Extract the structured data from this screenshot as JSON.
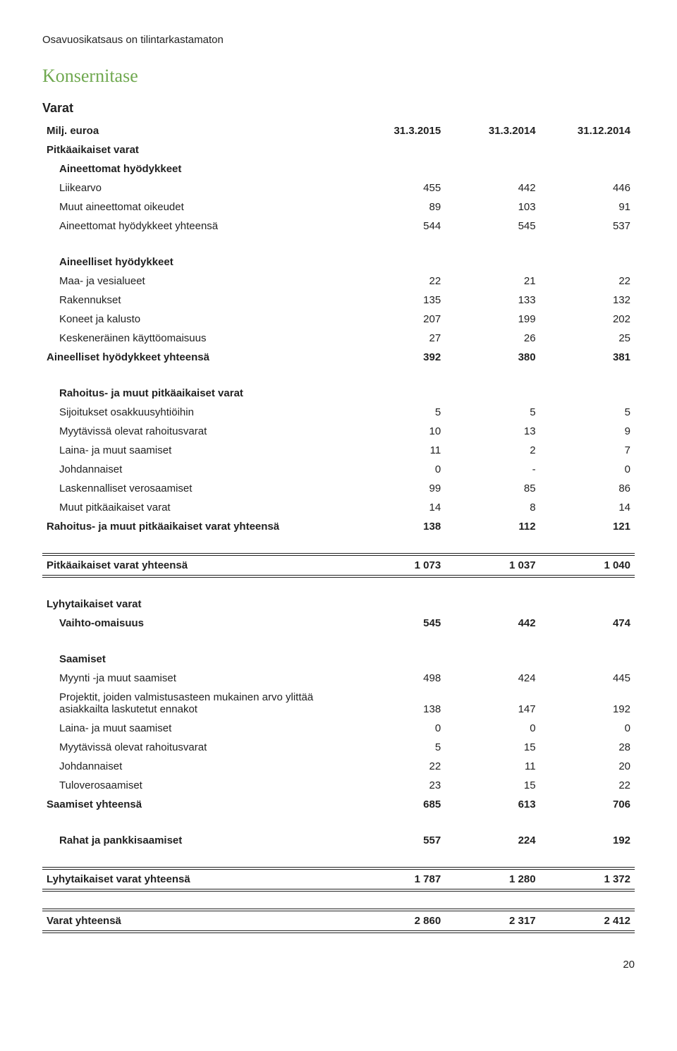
{
  "top_note": "Osavuosikatsaus on tilintarkastamaton",
  "title": "Konsernitase",
  "subheading": "Varat",
  "header": {
    "label": "Milj. euroa",
    "c1": "31.3.2015",
    "c2": "31.3.2014",
    "c3": "31.12.2014"
  },
  "rows": [
    {
      "type": "bold",
      "label": "Pitkäaikaiset varat"
    },
    {
      "type": "ind1 bold",
      "label": "Aineettomat hyödykkeet"
    },
    {
      "type": "ind1",
      "label": "Liikearvo",
      "c1": "455",
      "c2": "442",
      "c3": "446"
    },
    {
      "type": "ind1",
      "label": "Muut aineettomat oikeudet",
      "c1": "89",
      "c2": "103",
      "c3": "91"
    },
    {
      "type": "ind1",
      "label": "Aineettomat hyödykkeet yhteensä",
      "c1": "544",
      "c2": "545",
      "c3": "537"
    },
    {
      "type": "spacer"
    },
    {
      "type": "ind1 bold",
      "label": "Aineelliset hyödykkeet"
    },
    {
      "type": "ind1",
      "label": "Maa- ja vesialueet",
      "c1": "22",
      "c2": "21",
      "c3": "22"
    },
    {
      "type": "ind1",
      "label": "Rakennukset",
      "c1": "135",
      "c2": "133",
      "c3": "132"
    },
    {
      "type": "ind1",
      "label": "Koneet ja kalusto",
      "c1": "207",
      "c2": "199",
      "c3": "202"
    },
    {
      "type": "ind1",
      "label": "Keskeneräinen käyttöomaisuus",
      "c1": "27",
      "c2": "26",
      "c3": "25"
    },
    {
      "type": "bold",
      "label": "Aineelliset hyödykkeet yhteensä",
      "c1": "392",
      "c2": "380",
      "c3": "381"
    },
    {
      "type": "spacer"
    },
    {
      "type": "ind1 bold",
      "label": "Rahoitus- ja muut pitkäaikaiset varat"
    },
    {
      "type": "ind1",
      "label": "Sijoitukset osakkuusyhtiöihin",
      "c1": "5",
      "c2": "5",
      "c3": "5"
    },
    {
      "type": "ind1",
      "label": "Myytävissä olevat rahoitusvarat",
      "c1": "10",
      "c2": "13",
      "c3": "9"
    },
    {
      "type": "ind1",
      "label": "Laina- ja muut saamiset",
      "c1": "11",
      "c2": "2",
      "c3": "7"
    },
    {
      "type": "ind1",
      "label": "Johdannaiset",
      "c1": "0",
      "c2": "-",
      "c3": "0"
    },
    {
      "type": "ind1",
      "label": "Laskennalliset verosaamiset",
      "c1": "99",
      "c2": "85",
      "c3": "86"
    },
    {
      "type": "ind1",
      "label": "Muut pitkäaikaiset varat",
      "c1": "14",
      "c2": "8",
      "c3": "14"
    },
    {
      "type": "bold",
      "label": "Rahoitus- ja muut pitkäaikaiset varat yhteensä",
      "c1": "138",
      "c2": "112",
      "c3": "121"
    },
    {
      "type": "spacer"
    },
    {
      "type": "tot-double",
      "label": "Pitkäaikaiset varat yhteensä",
      "c1": "1 073",
      "c2": "1 037",
      "c3": "1 040"
    },
    {
      "type": "spacer"
    },
    {
      "type": "bold",
      "label": "Lyhytaikaiset varat"
    },
    {
      "type": "ind1 bold",
      "label": "Vaihto-omaisuus",
      "c1": "545",
      "c2": "442",
      "c3": "474"
    },
    {
      "type": "spacer"
    },
    {
      "type": "ind1 bold",
      "label": "Saamiset"
    },
    {
      "type": "ind1",
      "label": "Myynti -ja muut saamiset",
      "c1": "498",
      "c2": "424",
      "c3": "445"
    },
    {
      "type": "ind1",
      "label": "Projektit, joiden valmistusasteen mukainen arvo ylittää asiakkailta laskutetut ennakot",
      "c1": "138",
      "c2": "147",
      "c3": "192"
    },
    {
      "type": "ind1",
      "label": "Laina- ja muut saamiset",
      "c1": "0",
      "c2": "0",
      "c3": "0"
    },
    {
      "type": "ind1",
      "label": "Myytävissä olevat rahoitusvarat",
      "c1": "5",
      "c2": "15",
      "c3": "28"
    },
    {
      "type": "ind1",
      "label": "Johdannaiset",
      "c1": "22",
      "c2": "11",
      "c3": "20"
    },
    {
      "type": "ind1",
      "label": "Tuloverosaamiset",
      "c1": "23",
      "c2": "15",
      "c3": "22"
    },
    {
      "type": "bold",
      "label": "Saamiset yhteensä",
      "c1": "685",
      "c2": "613",
      "c3": "706"
    },
    {
      "type": "spacer"
    },
    {
      "type": "ind1 bold",
      "label": "Rahat ja pankkisaamiset",
      "c1": "557",
      "c2": "224",
      "c3": "192"
    },
    {
      "type": "spacer"
    },
    {
      "type": "tot-double",
      "label": "Lyhytaikaiset varat yhteensä",
      "c1": "1 787",
      "c2": "1 280",
      "c3": "1 372"
    },
    {
      "type": "spacer"
    },
    {
      "type": "tot-double",
      "label": "Varat yhteensä",
      "c1": "2 860",
      "c2": "2 317",
      "c3": "2 412"
    }
  ],
  "page_number": "20"
}
